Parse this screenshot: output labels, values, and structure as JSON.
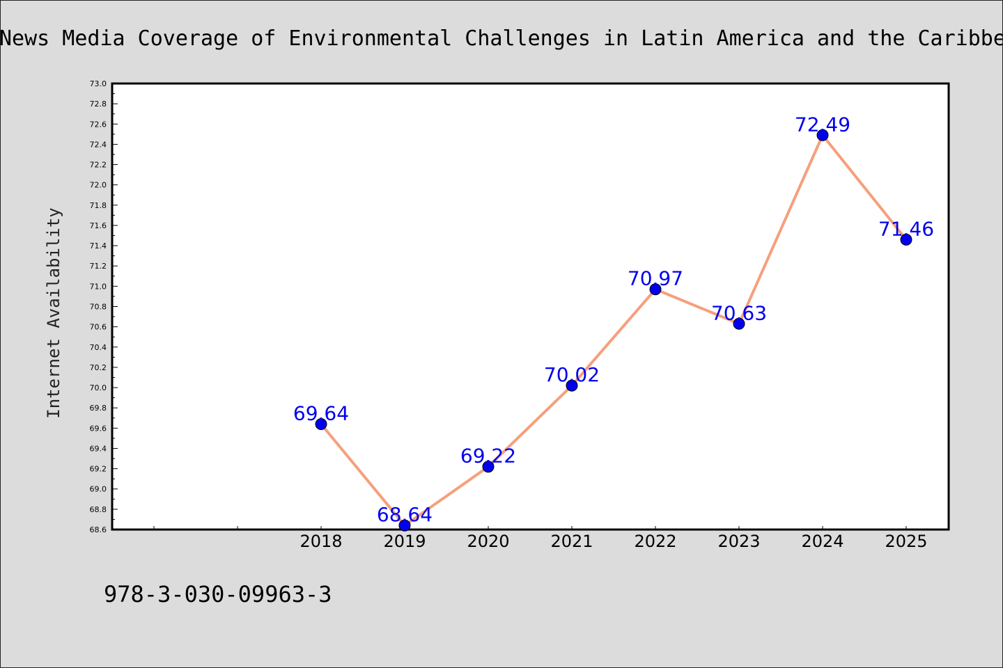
{
  "chart_data": {
    "type": "line",
    "title": "News Media Coverage of Environmental Challenges in Latin America and the Caribbean",
    "xlabel": "",
    "ylabel": "Internet Availability",
    "x_ticks": [
      "",
      "",
      "2018",
      "2019",
      "2020",
      "2021",
      "2022",
      "2023",
      "2024",
      "2025"
    ],
    "categories": [
      "2018",
      "2019",
      "2020",
      "2021",
      "2022",
      "2023",
      "2024",
      "2025"
    ],
    "values": [
      69.64,
      68.64,
      69.22,
      70.02,
      70.97,
      70.63,
      72.49,
      71.46
    ],
    "data_labels": [
      "69.64",
      "68.64",
      "69.22",
      "70.02",
      "70.97",
      "70.63",
      "72.49",
      "71.46"
    ],
    "ylim": [
      68.6,
      73.0
    ],
    "y_ticks": [
      "68.6",
      "68.8",
      "69.0",
      "69.2",
      "69.4",
      "69.6",
      "69.8",
      "70.0",
      "70.2",
      "70.4",
      "70.6",
      "70.8",
      "71.0",
      "71.2",
      "71.4",
      "71.6",
      "71.8",
      "72.0",
      "72.2",
      "72.4",
      "72.6",
      "72.8",
      "73.0"
    ],
    "grid": false,
    "line_color": "#f5a07c",
    "marker_color": "#0000ee",
    "label_color": "#0000ee"
  },
  "footer_text": "978-3-030-09963-3"
}
